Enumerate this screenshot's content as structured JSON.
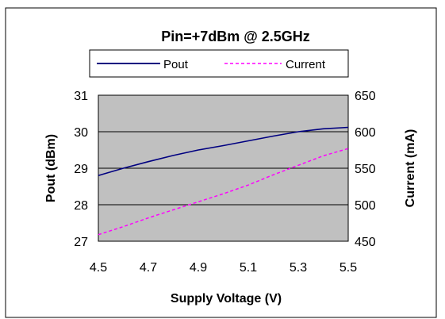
{
  "chart_data": {
    "type": "line",
    "title": "Pin=+7dBm @ 2.5GHz",
    "xlabel": "Supply Voltage  (V)",
    "ylabel_left": "Pout (dBm)",
    "ylabel_right": "Current (mA)",
    "xlim": [
      4.5,
      5.5
    ],
    "ylim_left": [
      27,
      31
    ],
    "ylim_right": [
      450,
      650
    ],
    "x_ticks": [
      "4.5",
      "4.7",
      "4.9",
      "5.1",
      "5.3",
      "5.5"
    ],
    "y_ticks_left": [
      "27",
      "28",
      "29",
      "30",
      "31"
    ],
    "y_ticks_right": [
      "450",
      "500",
      "550",
      "600",
      "650"
    ],
    "grid": true,
    "legend_position": "top",
    "plot_background": "#c0c0c0",
    "series": [
      {
        "name": "Pout",
        "axis": "left",
        "color": "#000080",
        "line_style": "solid",
        "x": [
          4.5,
          4.6,
          4.7,
          4.8,
          4.9,
          5.0,
          5.1,
          5.2,
          5.3,
          5.4,
          5.5
        ],
        "y": [
          28.8,
          29.0,
          29.18,
          29.35,
          29.5,
          29.62,
          29.75,
          29.88,
          30.0,
          30.08,
          30.12
        ]
      },
      {
        "name": "Current",
        "axis": "right",
        "color": "#ff00ff",
        "line_style": "dashed",
        "x": [
          4.5,
          4.6,
          4.7,
          4.8,
          4.9,
          5.0,
          5.1,
          5.2,
          5.3,
          5.4,
          5.5
        ],
        "y": [
          459,
          470,
          482,
          493,
          504,
          515,
          527,
          541,
          554,
          567,
          577
        ]
      }
    ]
  }
}
